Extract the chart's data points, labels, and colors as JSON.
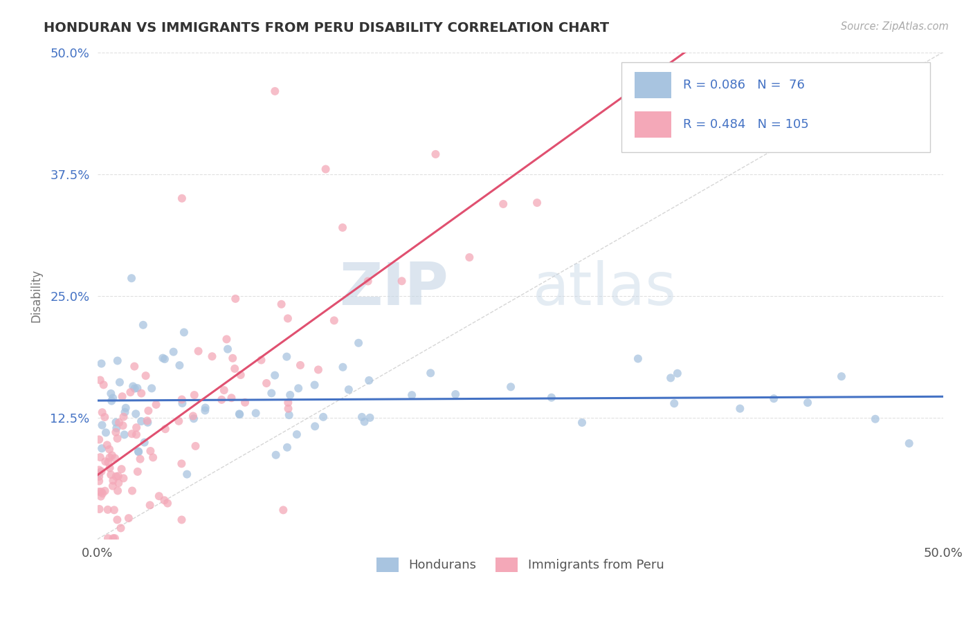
{
  "title": "HONDURAN VS IMMIGRANTS FROM PERU DISABILITY CORRELATION CHART",
  "source": "Source: ZipAtlas.com",
  "ylabel": "Disability",
  "xlim": [
    0.0,
    0.5
  ],
  "ylim": [
    0.0,
    0.5
  ],
  "xtick_labels": [
    "0.0%",
    "50.0%"
  ],
  "xtick_positions": [
    0.0,
    0.5
  ],
  "ytick_labels": [
    "12.5%",
    "25.0%",
    "37.5%",
    "50.0%"
  ],
  "ytick_positions": [
    0.125,
    0.25,
    0.375,
    0.5
  ],
  "honduran_color": "#a8c4e0",
  "peru_color": "#f4a8b8",
  "honduran_R": 0.086,
  "honduran_N": 76,
  "peru_R": 0.484,
  "peru_N": 105,
  "legend_label_1": "Hondurans",
  "legend_label_2": "Immigrants from Peru",
  "watermark_zip": "ZIP",
  "watermark_atlas": "atlas",
  "background_color": "#ffffff",
  "title_color": "#333333",
  "axis_label_color": "#777777",
  "legend_text_color": "#4472c4",
  "ref_line_color": "#cccccc",
  "honduran_line_color": "#4472c4",
  "peru_line_color": "#e05070",
  "grid_color": "#e0e0e0",
  "source_color": "#aaaaaa"
}
